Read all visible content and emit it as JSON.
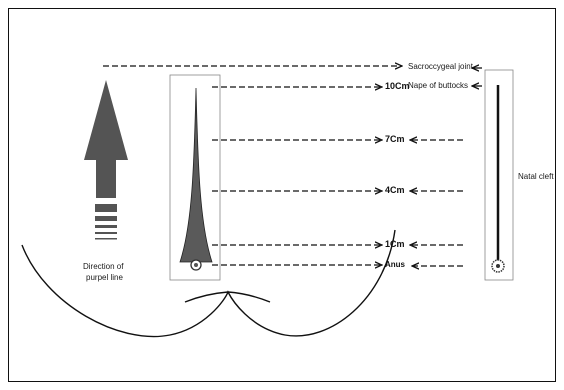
{
  "labels": {
    "sacrococcygeal": "Sacroccygeal joint",
    "nape": "Nape of buttocks",
    "natal_cleft": "Natal cleft",
    "direction_line1": "Direction of",
    "direction_line2": "purpel line"
  },
  "marks": {
    "m10": "10Cm",
    "m7": "7Cm",
    "m4": "4Cm",
    "m1": "1Cm",
    "anus": "Anus"
  }
}
